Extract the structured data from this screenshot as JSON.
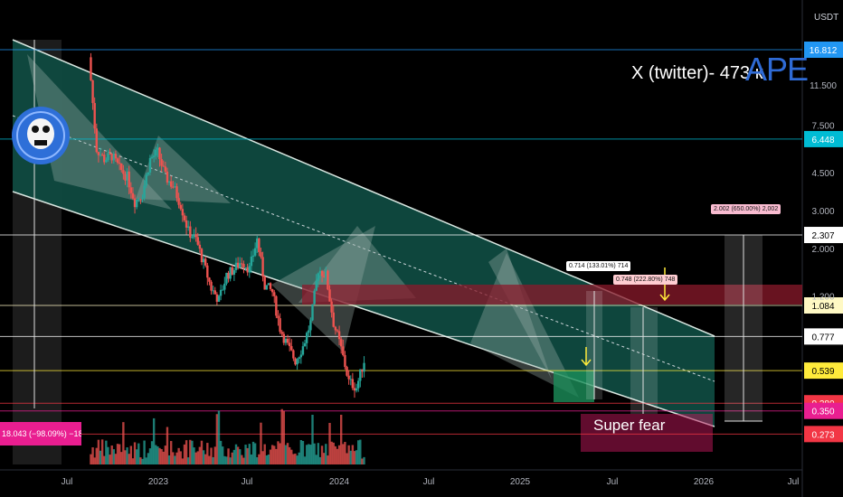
{
  "header": {
    "headline": "X (twitter)- 473 к",
    "ticker": "APE",
    "currency": "USDT"
  },
  "colors": {
    "background": "#000000",
    "channel_fill": "#0f4a40",
    "channel_edge": "#d8e6e0",
    "up": "#26a69a",
    "down": "#ef5350",
    "fear_zone": "#c2185b",
    "resistance_zone": "#8b1a2b",
    "accent_blue": "#2f6bd6"
  },
  "chart_data": {
    "type": "candlestick",
    "y_scale": "log",
    "x_labels": [
      "Jul",
      "2023",
      "Jul",
      "2024",
      "Jul",
      "2025",
      "Jul",
      "2026",
      "Jul"
    ],
    "y_tick_labels": [
      "11.500",
      "7.500",
      "4.500",
      "3.000",
      "2.000",
      "1.200"
    ],
    "price_levels": [
      {
        "label": "16.812",
        "value": 16.812,
        "color": "#2196f3"
      },
      {
        "label": "6.448",
        "value": 6.448,
        "color": "#00bcd4"
      },
      {
        "label": "2.307",
        "value": 2.307,
        "color": "#ffffff"
      },
      {
        "label": "1.084",
        "value": 1.084,
        "color": "#fff9c4"
      },
      {
        "label": "0.777",
        "value": 0.777,
        "color": "#ffffff"
      },
      {
        "label": "0.539",
        "value": 0.539,
        "color": "#ffeb3b"
      },
      {
        "label": "0.380",
        "value": 0.38,
        "color": "#f23645"
      },
      {
        "label": "0.350",
        "value": 0.35,
        "color": "#e91e90"
      },
      {
        "label": "0.273",
        "value": 0.273,
        "color": "#f23645"
      }
    ],
    "measurements": [
      {
        "text": "18.043 (−98.09%) −18,043"
      },
      {
        "text": "0.714 (133.01%) 714"
      },
      {
        "text": "0.748 (222.80%) 748"
      },
      {
        "text": "2.002 (650.00%) 2,002"
      }
    ],
    "zones": [
      {
        "label": "Super fear"
      }
    ],
    "price_path": [
      [
        "2022-05",
        15.5
      ],
      [
        "2022-06",
        5.8
      ],
      [
        "2022-07",
        5.2
      ],
      [
        "2022-08",
        5.4
      ],
      [
        "2022-09",
        4.7
      ],
      [
        "2022-10",
        4.3
      ],
      [
        "2022-11",
        3.3
      ],
      [
        "2022-12",
        3.6
      ],
      [
        "2023-01",
        5.2
      ],
      [
        "2023-02",
        5.6
      ],
      [
        "2023-03",
        4.3
      ],
      [
        "2023-04",
        3.9
      ],
      [
        "2023-05",
        3.2
      ],
      [
        "2023-06",
        2.4
      ],
      [
        "2023-07",
        2.2
      ],
      [
        "2023-08",
        1.7
      ],
      [
        "2023-09",
        1.3
      ],
      [
        "2023-10",
        1.15
      ],
      [
        "2023-11",
        1.5
      ],
      [
        "2023-12",
        1.6
      ],
      [
        "2024-01",
        1.75
      ],
      [
        "2024-02",
        1.6
      ],
      [
        "2024-03",
        2.2
      ],
      [
        "2024-04",
        1.35
      ],
      [
        "2024-05",
        1.25
      ],
      [
        "2024-06",
        0.85
      ],
      [
        "2024-07",
        0.7
      ],
      [
        "2024-08",
        0.6
      ],
      [
        "2024-09",
        0.7
      ],
      [
        "2024-10",
        0.9
      ],
      [
        "2024-11",
        1.6
      ],
      [
        "2024-12",
        1.5
      ],
      [
        "2025-01",
        0.9
      ],
      [
        "2025-02",
        0.68
      ],
      [
        "2025-03",
        0.48
      ],
      [
        "2025-04",
        0.45
      ],
      [
        "2025-05",
        0.6
      ]
    ]
  }
}
